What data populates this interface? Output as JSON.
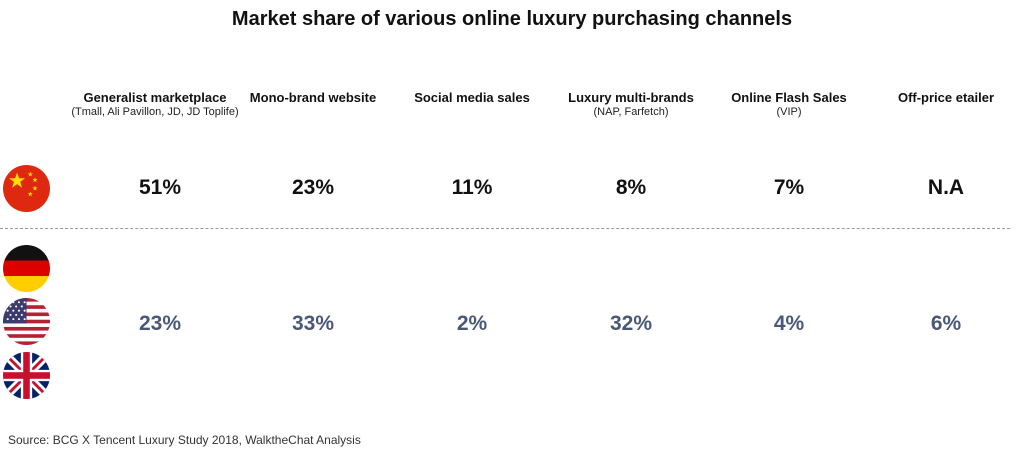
{
  "chart_data": {
    "type": "table",
    "title": "Market share of various online luxury purchasing channels",
    "columns": [
      {
        "name": "Generalist marketplace",
        "sub": "(Tmall, Ali Pavillon, JD, JD Toplife)"
      },
      {
        "name": "Mono-brand website",
        "sub": ""
      },
      {
        "name": "Social media sales",
        "sub": ""
      },
      {
        "name": "Luxury multi-brands",
        "sub": "(NAP, Farfetch)"
      },
      {
        "name": "Online Flash Sales",
        "sub": "(VIP)"
      },
      {
        "name": "Off-price etailer",
        "sub": ""
      }
    ],
    "rows": [
      {
        "region": "China",
        "flags": [
          "china-flag"
        ],
        "values": [
          "51%",
          "23%",
          "11%",
          "8%",
          "7%",
          "N.A"
        ]
      },
      {
        "region": "Germany, USA, UK",
        "flags": [
          "germany-flag",
          "usa-flag",
          "uk-flag"
        ],
        "values": [
          "23%",
          "33%",
          "2%",
          "32%",
          "4%",
          "6%"
        ]
      }
    ]
  },
  "source": "Source: BCG X Tencent Luxury Study 2018, WalktheChat Analysis",
  "colors": {
    "china_values": "#111111",
    "west_values": "#4a5878",
    "divider": "#9a9a9a"
  }
}
